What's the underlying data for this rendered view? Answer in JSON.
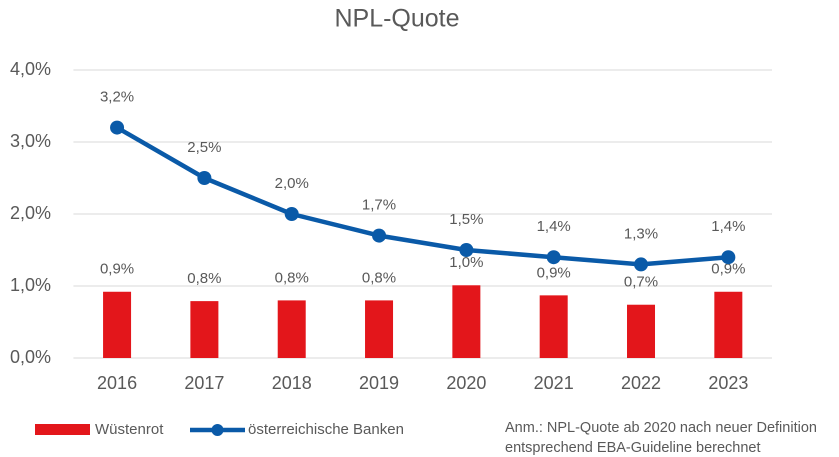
{
  "chart_data": {
    "type": "bar",
    "title": "NPL-Quote",
    "categories": [
      "2016",
      "2017",
      "2018",
      "2019",
      "2020",
      "2021",
      "2022",
      "2023"
    ],
    "series": [
      {
        "name": "Wüstenrot",
        "type": "bar",
        "color": "#e3161b",
        "values": [
          0.92,
          0.79,
          0.8,
          0.8,
          1.01,
          0.87,
          0.74,
          0.92
        ],
        "value_labels": [
          "0,9%",
          "0,8%",
          "0,8%",
          "0,8%",
          "1,0%",
          "0,9%",
          "0,7%",
          "0,9%"
        ]
      },
      {
        "name": "österreichische Banken",
        "type": "line",
        "color": "#0a5aa8",
        "values": [
          3.2,
          2.5,
          2.0,
          1.7,
          1.5,
          1.4,
          1.3,
          1.4
        ],
        "value_labels": [
          "3,2%",
          "2,5%",
          "2,0%",
          "1,7%",
          "1,5%",
          "1,4%",
          "1,3%",
          "1,4%"
        ]
      }
    ],
    "ylim": [
      0,
      4
    ],
    "yticks": [
      {
        "value": 0,
        "label": "0,0%"
      },
      {
        "value": 1,
        "label": "1,0%"
      },
      {
        "value": 2,
        "label": "2,0%"
      },
      {
        "value": 3,
        "label": "3,0%"
      },
      {
        "value": 4,
        "label": "4,0%"
      }
    ],
    "grid": true,
    "legend": "bottom-left",
    "annotation": [
      "Anm.: NPL-Quote ab 2020 nach neuer Definition",
      "entsprechend EBA-Guideline berechnet"
    ]
  }
}
